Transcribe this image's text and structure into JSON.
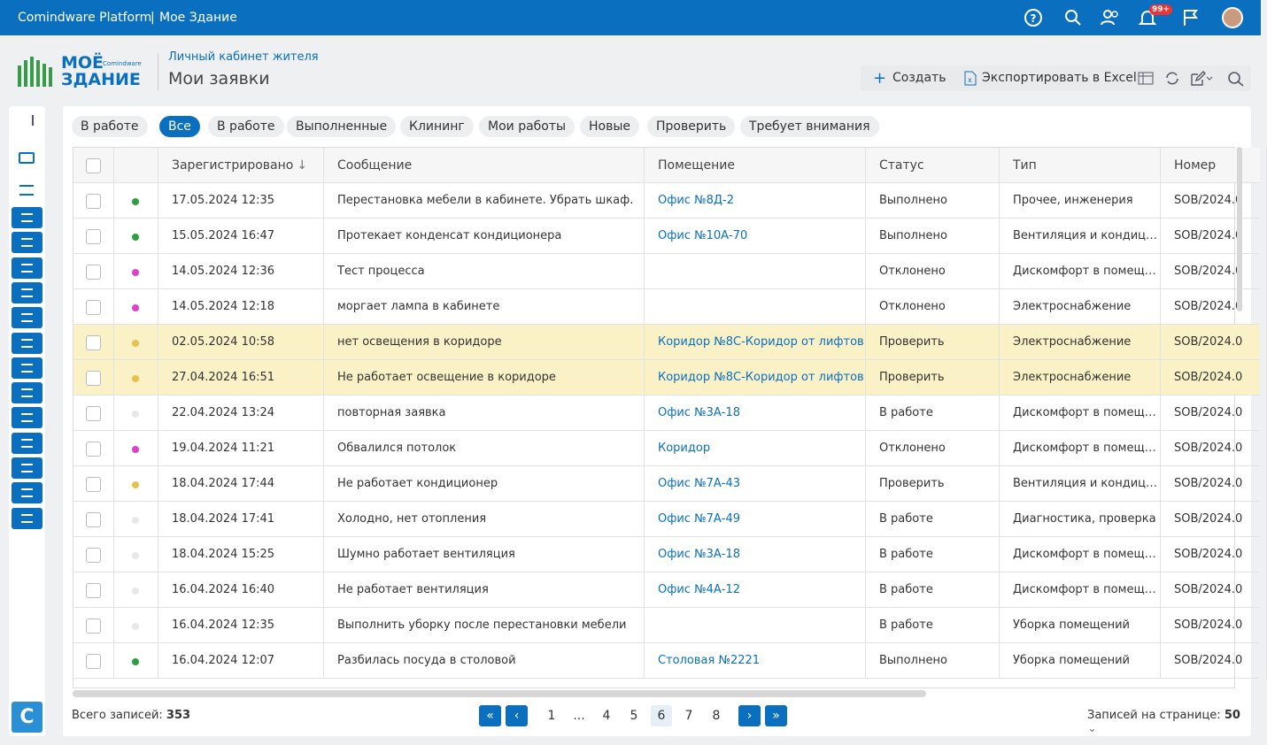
{
  "topbar": {
    "title": "Comindware Platform",
    "separator": "|",
    "subtitle": "Мое Здание",
    "badge": "99+"
  },
  "logo": {
    "line1": "МОЁ",
    "line2": "ЗДАНИЕ",
    "brand": "Comindware"
  },
  "header": {
    "breadcrumb": "Личный кабинет жителя",
    "title": "Мои заявки"
  },
  "toolbar": {
    "create": "Создать",
    "export": "Экспортировать в Excel"
  },
  "tabs": [
    "В работе",
    "Все",
    "В работе",
    "Выполненные",
    "Клининг",
    "Мои работы",
    "Новые",
    "Проверить",
    "Требует внимания"
  ],
  "active_tab": 1,
  "table": {
    "columns": [
      "Зарегистрировано",
      "Сообщение",
      "Помещение",
      "Статус",
      "Тип",
      "Номер"
    ],
    "rows": [
      {
        "date": "17.05.2024 12:35",
        "message": "Перестановка мебели в кабинете. Убрать шкаф.",
        "room": "Офис №8Д-2",
        "status": "Выполнено",
        "type": "Прочее, инженерия",
        "number": "SOB/2024.0",
        "dot": "#2e9e3e",
        "highlight": false
      },
      {
        "date": "15.05.2024 16:47",
        "message": "Протекает конденсат кондиционера",
        "room": "Офис №10А-70",
        "status": "Выполнено",
        "type": "Вентиляция и кондиц…",
        "number": "SOB/2024.0",
        "dot": "#2e9e3e",
        "highlight": false
      },
      {
        "date": "14.05.2024 12:36",
        "message": "Тест процесса",
        "room": null,
        "status": "Отклонено",
        "type": "Дискомфорт в помещ…",
        "number": "SOB/2024.0",
        "dot": "#e23fcf",
        "highlight": false
      },
      {
        "date": "14.05.2024 12:18",
        "message": "моргает лампа в кабинете",
        "room": null,
        "status": "Отклонено",
        "type": "Электроснабжение",
        "number": "SOB/2024.0",
        "dot": "#e23fcf",
        "highlight": false
      },
      {
        "date": "02.05.2024 10:58",
        "message": "нет освещения в коридоре",
        "room": "Коридор №8С-Коридор от лифтов",
        "status": "Проверить",
        "type": "Электроснабжение",
        "number": "SOB/2024.0",
        "dot": "#e8c050",
        "highlight": true
      },
      {
        "date": "27.04.2024 16:51",
        "message": "Не работает освещение в коридоре",
        "room": "Коридор №8С-Коридор от лифтов",
        "status": "Проверить",
        "type": "Электроснабжение",
        "number": "SOB/2024.0",
        "dot": "#e8c050",
        "highlight": true
      },
      {
        "date": "22.04.2024 13:24",
        "message": "повторная заявка",
        "room": "Офис №3А-18",
        "status": "В работе",
        "type": "Дискомфорт в помещ…",
        "number": "SOB/2024.0",
        "dot": "#e8e8e8",
        "highlight": false
      },
      {
        "date": "19.04.2024 11:21",
        "message": "Обвалился потолок",
        "room": "Коридор",
        "status": "Отклонено",
        "type": "Дискомфорт в помещ…",
        "number": "SOB/2024.0",
        "dot": "#e23fcf",
        "highlight": false
      },
      {
        "date": "18.04.2024 17:44",
        "message": "Не работает кондиционер",
        "room": "Офис №7А-43",
        "status": "Проверить",
        "type": "Вентиляция и кондиц…",
        "number": "SOB/2024.0",
        "dot": "#e8c050",
        "highlight": false
      },
      {
        "date": "18.04.2024 17:41",
        "message": "Холодно, нет отопления",
        "room": "Офис №7А-49",
        "status": "В работе",
        "type": "Диагностика, проверка",
        "number": "SOB/2024.0",
        "dot": "#e8e8e8",
        "highlight": false
      },
      {
        "date": "18.04.2024 15:25",
        "message": "Шумно работает вентиляция",
        "room": "Офис №3А-18",
        "status": "В работе",
        "type": "Дискомфорт в помещ…",
        "number": "SOB/2024.0",
        "dot": "#e8e8e8",
        "highlight": false
      },
      {
        "date": "16.04.2024 16:40",
        "message": "Не работает вентиляция",
        "room": "Офис №4А-12",
        "status": "В работе",
        "type": "Дискомфорт в помещ…",
        "number": "SOB/2024.0",
        "dot": "#e8e8e8",
        "highlight": false
      },
      {
        "date": "16.04.2024 12:35",
        "message": "Выполнить уборку после перестановки мебели",
        "room": null,
        "status": "В работе",
        "type": "Уборка помещений",
        "number": "SOB/2024.0",
        "dot": "#e8e8e8",
        "highlight": false
      },
      {
        "date": "16.04.2024 12:07",
        "message": "Разбилась посуда в столовой",
        "room": "Столовая №2221",
        "status": "Выполнено",
        "type": "Уборка помещений",
        "number": "SOB/2024.0",
        "dot": "#2e9e3e",
        "highlight": false
      }
    ]
  },
  "footer": {
    "total_label": "Всего записей:",
    "total": "353",
    "pages": [
      "1",
      "...",
      "4",
      "5",
      "6",
      "7",
      "8"
    ],
    "active_page": 4,
    "page_size_label": "Записей на странице:",
    "page_size": "50"
  }
}
